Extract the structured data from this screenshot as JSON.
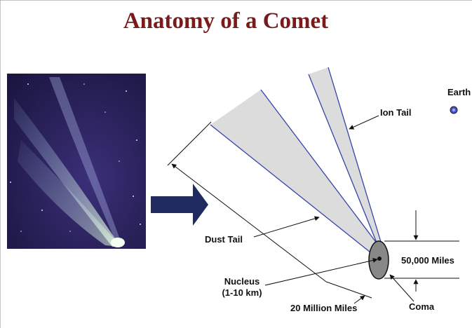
{
  "header": {
    "title": "Anatomy of a Comet"
  },
  "labels": {
    "earth": "Earth",
    "ion_tail": "Ion Tail",
    "dust_tail": "Dust Tail",
    "nucleus": "Nucleus",
    "nucleus_size": "(1-10 km)",
    "coma_width": "50,000 Miles",
    "tail_length": "20 Million Miles",
    "coma": "Coma"
  }
}
